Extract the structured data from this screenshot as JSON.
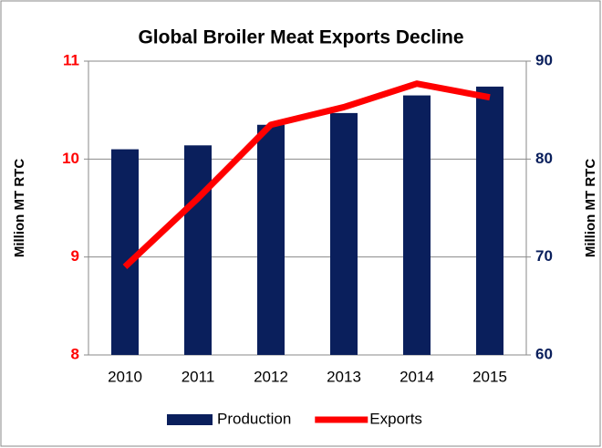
{
  "chart_data": {
    "type": "bar_line",
    "title": "Global Broiler Meat Exports Decline",
    "categories": [
      "2010",
      "2011",
      "2012",
      "2013",
      "2014",
      "2015"
    ],
    "series": [
      {
        "name": "Production",
        "type": "bar",
        "axis": "y2",
        "color": "#0a1f5c",
        "values": [
          81.0,
          81.4,
          83.5,
          84.7,
          86.5,
          87.4
        ]
      },
      {
        "name": "Exports",
        "type": "line",
        "axis": "y",
        "color": "#ff0000",
        "values": [
          8.9,
          9.6,
          10.35,
          10.53,
          10.77,
          10.63
        ]
      }
    ],
    "y_label": "Million MT RTC",
    "y2_label": "Million MT RTC",
    "ylim": [
      8,
      11
    ],
    "yticks": [
      8,
      9,
      10,
      11
    ],
    "ytick_color": "#ff0000",
    "y2lim": [
      60,
      90
    ],
    "y2ticks": [
      60,
      70,
      80,
      90
    ],
    "y2tick_color": "#0a1f5c",
    "grid": true,
    "legend": "bottom"
  }
}
